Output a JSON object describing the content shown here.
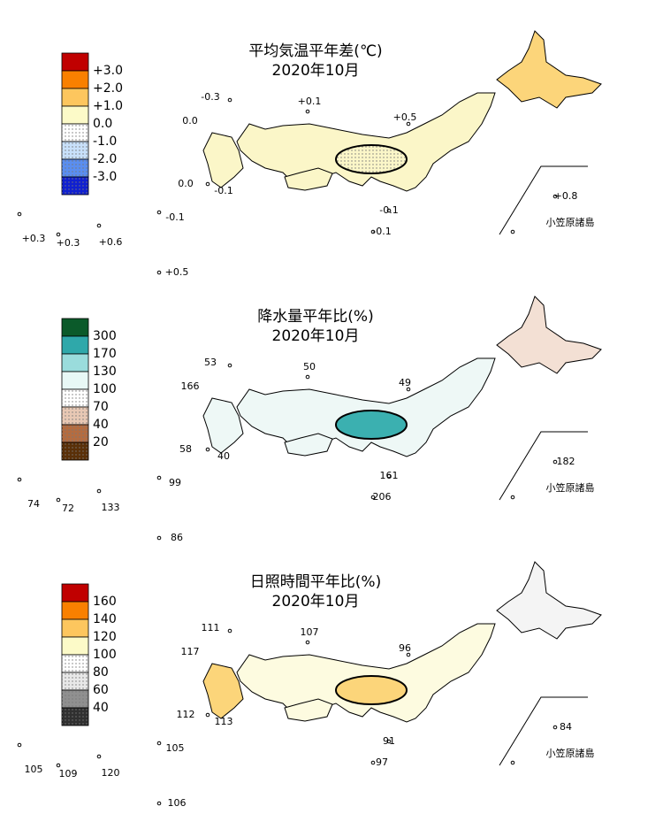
{
  "panels": [
    {
      "title": "平均気温平年差(℃)",
      "subtitle": "2020年10月",
      "legend": {
        "labels": [
          "+3.0",
          "+2.0",
          "+1.0",
          "0.0",
          "-1.0",
          "-2.0",
          "-3.0"
        ],
        "colors": [
          "#c00000",
          "#f98000",
          "#fdc65e",
          "#fcfac8",
          "#ffffff",
          "#c8e0fa",
          "#5a8ef0",
          "#1020d0"
        ]
      },
      "inset_label": "小笠原諸島",
      "stations": [
        "-0.3",
        "+0.1",
        "0.0",
        "+0.5",
        "0.0",
        "-0.1",
        "+0.8",
        "-0.1",
        "-0.1",
        "+0.3",
        "+0.3",
        "+0.6",
        "-0.1",
        "+0.5"
      ]
    },
    {
      "title": "降水量平年比(%)",
      "subtitle": "2020年10月",
      "legend": {
        "labels": [
          "300",
          "170",
          "130",
          "100",
          "70",
          "40",
          "20"
        ],
        "colors": [
          "#0b5a2a",
          "#2fa8aa",
          "#9adcdc",
          "#e8f8f6",
          "#ffffff",
          "#e8c8b4",
          "#b46c40",
          "#5a3008"
        ]
      },
      "inset_label": "小笠原諸島",
      "stations": [
        "53",
        "50",
        "166",
        "49",
        "58",
        "40",
        "182",
        "161",
        "206",
        "74",
        "72",
        "133",
        "99",
        "86"
      ]
    },
    {
      "title": "日照時間平年比(%)",
      "subtitle": "2020年10月",
      "legend": {
        "labels": [
          "160",
          "140",
          "120",
          "100",
          "80",
          "60",
          "40"
        ],
        "colors": [
          "#c00000",
          "#f98000",
          "#fdc65e",
          "#fcfac8",
          "#ffffff",
          "#e8e8e8",
          "#909090",
          "#303030"
        ]
      },
      "inset_label": "小笠原諸島",
      "stations": [
        "111",
        "107",
        "117",
        "96",
        "112",
        "113",
        "84",
        "91",
        "97",
        "105",
        "109",
        "120",
        "105",
        "106"
      ]
    }
  ]
}
